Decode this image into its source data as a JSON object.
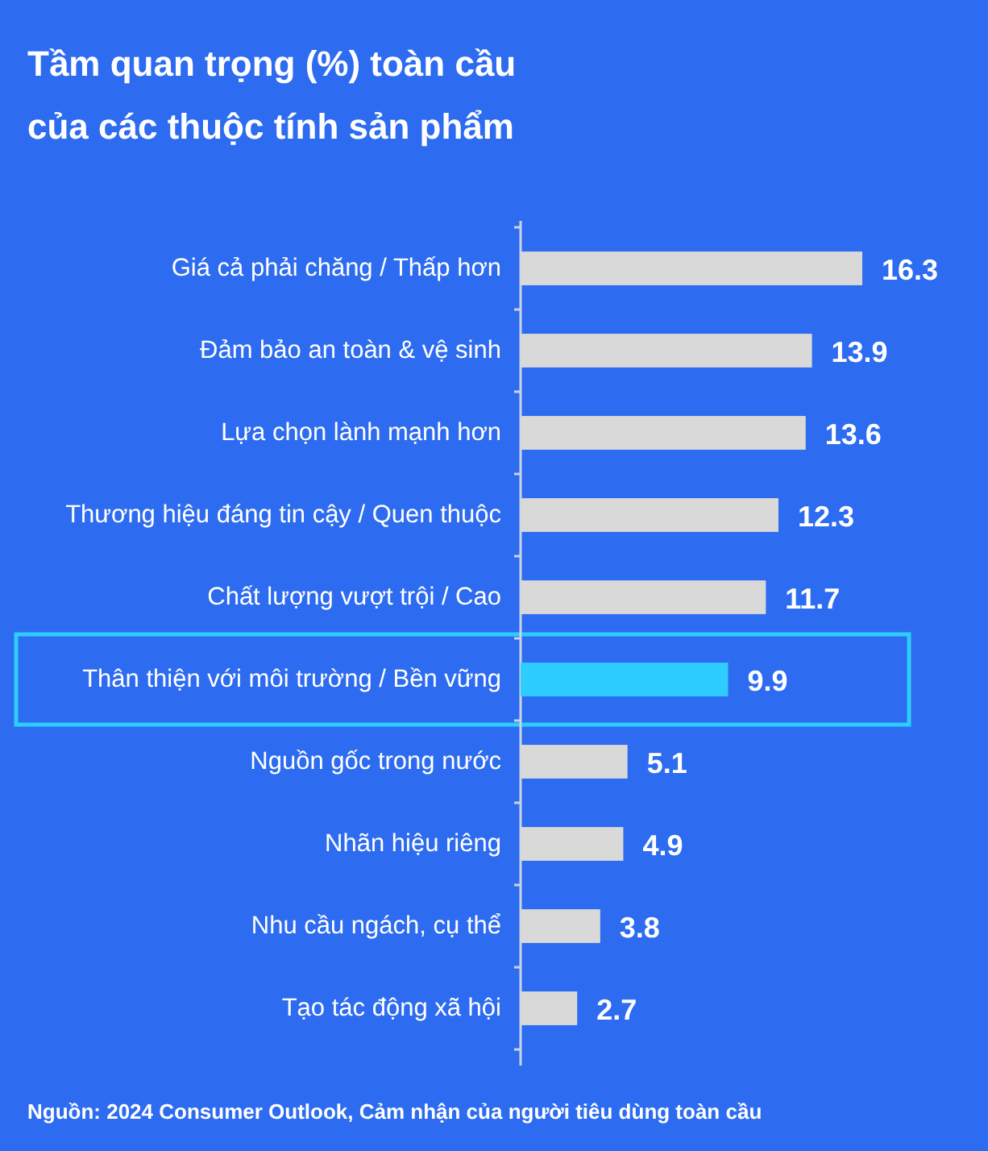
{
  "chart_data": {
    "type": "bar",
    "orientation": "horizontal",
    "title": "Tầm quan trọng (%) toàn cầu của các thuộc tính sản phẩm",
    "categories": [
      "Giá cả phải chăng / Thấp hơn",
      "Đảm bảo an toàn & vệ sinh",
      "Lựa chọn lành mạnh hơn",
      "Thương hiệu đáng tin cậy / Quen thuộc",
      "Chất lượng vượt trội / Cao",
      "Thân thiện với môi trường / Bền vững",
      "Nguồn gốc trong nước",
      "Nhãn hiệu riêng",
      "Nhu cầu ngách, cụ thể",
      "Tạo tác động xã hội"
    ],
    "values": [
      16.3,
      13.9,
      13.6,
      12.3,
      11.7,
      9.9,
      5.1,
      4.9,
      3.8,
      2.7
    ],
    "colors": [
      "#d9d9d9",
      "#d9d9d9",
      "#d9d9d9",
      "#d9d9d9",
      "#d9d9d9",
      "#2ecdff",
      "#d9d9d9",
      "#d9d9d9",
      "#d9d9d9",
      "#d9d9d9"
    ],
    "data_labels": true,
    "annotations": [
      "Nguồn: 2024 Consumer Outlook, Cảm nhận của người tiêu dùng toàn cầu"
    ]
  }
}
